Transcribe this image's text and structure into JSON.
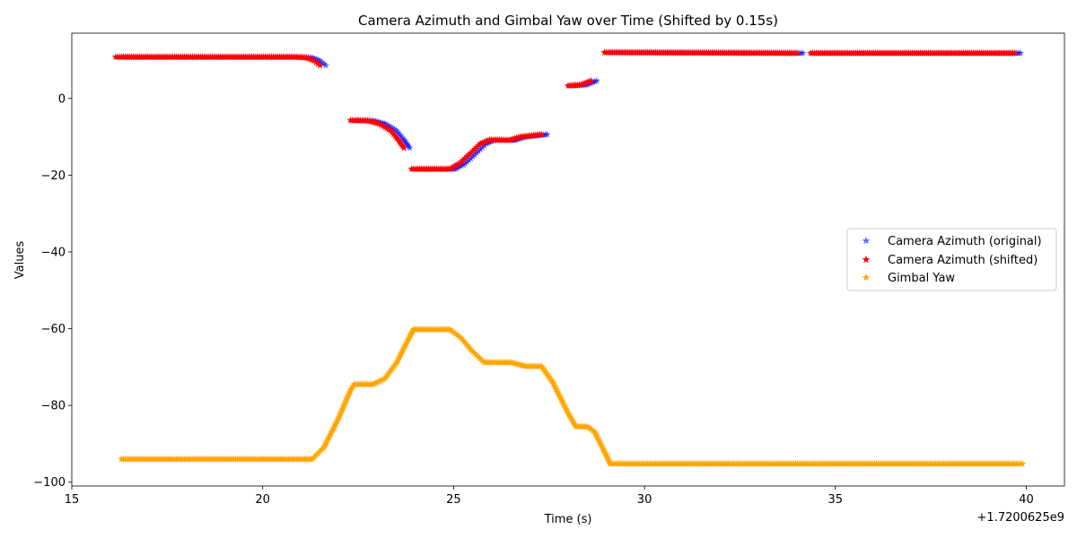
{
  "chart_data": {
    "type": "scatter",
    "title": "Camera Azimuth and Gimbal Yaw over Time (Shifted by 0.15s)",
    "xlabel": "Time (s)",
    "ylabel": "Values",
    "x_offset_label": "+1.7200625e9",
    "xlim": [
      15,
      41
    ],
    "ylim": [
      -101,
      17
    ],
    "xticks": [
      15,
      20,
      25,
      30,
      35,
      40
    ],
    "yticks": [
      0,
      -20,
      -40,
      -60,
      -80,
      -100
    ],
    "grid": false,
    "legend_position": "center-right",
    "colors": {
      "original": "#0000ff",
      "shifted": "#ff0000",
      "gimbal": "#ffa500"
    },
    "series": [
      {
        "name": "Camera Azimuth (original)",
        "marker": "star",
        "color": "#0000ff",
        "alpha": 0.6,
        "segments": [
          [
            [
              16.3,
              10.8
            ],
            [
              21.0,
              10.8
            ],
            [
              21.3,
              10.6
            ],
            [
              21.5,
              9.8
            ],
            [
              21.65,
              8.6
            ]
          ],
          [
            [
              22.45,
              -5.7
            ],
            [
              22.9,
              -5.8
            ],
            [
              23.2,
              -6.6
            ],
            [
              23.5,
              -8.4
            ],
            [
              23.7,
              -10.8
            ],
            [
              23.85,
              -12.9
            ]
          ],
          [
            [
              24.05,
              -18.4
            ],
            [
              25.05,
              -18.4
            ],
            [
              25.3,
              -17.0
            ],
            [
              25.6,
              -14.2
            ],
            [
              25.85,
              -11.8
            ],
            [
              26.1,
              -10.8
            ],
            [
              26.6,
              -10.9
            ],
            [
              26.9,
              -10.0
            ],
            [
              27.45,
              -9.4
            ]
          ],
          [
            [
              28.15,
              3.3
            ],
            [
              28.5,
              3.6
            ],
            [
              28.75,
              4.6
            ]
          ],
          [
            [
              29.1,
              12.0
            ],
            [
              34.15,
              11.8
            ]
          ],
          [
            [
              34.5,
              11.8
            ],
            [
              39.85,
              11.8
            ]
          ]
        ]
      },
      {
        "name": "Camera Azimuth (shifted)",
        "marker": "star",
        "color": "#ff0000",
        "alpha": 1,
        "segments": [
          [
            [
              16.15,
              10.8
            ],
            [
              20.85,
              10.8
            ],
            [
              21.15,
              10.6
            ],
            [
              21.35,
              9.8
            ],
            [
              21.5,
              8.6
            ]
          ],
          [
            [
              22.3,
              -5.7
            ],
            [
              22.75,
              -5.8
            ],
            [
              23.05,
              -6.6
            ],
            [
              23.35,
              -8.4
            ],
            [
              23.55,
              -10.8
            ],
            [
              23.7,
              -12.9
            ]
          ],
          [
            [
              23.9,
              -18.4
            ],
            [
              24.9,
              -18.4
            ],
            [
              25.15,
              -17.0
            ],
            [
              25.45,
              -14.2
            ],
            [
              25.7,
              -11.8
            ],
            [
              25.95,
              -10.8
            ],
            [
              26.45,
              -10.9
            ],
            [
              26.75,
              -10.0
            ],
            [
              27.3,
              -9.4
            ]
          ],
          [
            [
              28.0,
              3.3
            ],
            [
              28.35,
              3.6
            ],
            [
              28.6,
              4.6
            ]
          ],
          [
            [
              28.95,
              12.0
            ],
            [
              34.0,
              11.8
            ]
          ],
          [
            [
              34.35,
              11.8
            ],
            [
              39.7,
              11.8
            ]
          ]
        ]
      },
      {
        "name": "Gimbal Yaw",
        "marker": "star",
        "color": "#ffa500",
        "alpha": 1,
        "segments": [
          [
            [
              16.3,
              -94.0
            ],
            [
              21.3,
              -94.0
            ],
            [
              21.6,
              -91.0
            ],
            [
              22.0,
              -83.0
            ],
            [
              22.3,
              -76.0
            ],
            [
              22.4,
              -74.5
            ],
            [
              22.9,
              -74.5
            ],
            [
              23.2,
              -73.0
            ],
            [
              23.5,
              -69.0
            ],
            [
              23.8,
              -63.0
            ],
            [
              23.95,
              -60.2
            ],
            [
              24.9,
              -60.2
            ],
            [
              25.2,
              -62.5
            ],
            [
              25.5,
              -66.0
            ],
            [
              25.8,
              -68.8
            ],
            [
              26.5,
              -68.8
            ],
            [
              26.9,
              -69.8
            ],
            [
              27.3,
              -69.8
            ],
            [
              27.6,
              -74.0
            ],
            [
              28.0,
              -82.0
            ],
            [
              28.2,
              -85.5
            ],
            [
              28.5,
              -85.5
            ],
            [
              28.7,
              -87.0
            ],
            [
              29.0,
              -93.0
            ],
            [
              29.1,
              -95.2
            ],
            [
              39.9,
              -95.2
            ]
          ]
        ]
      }
    ]
  }
}
